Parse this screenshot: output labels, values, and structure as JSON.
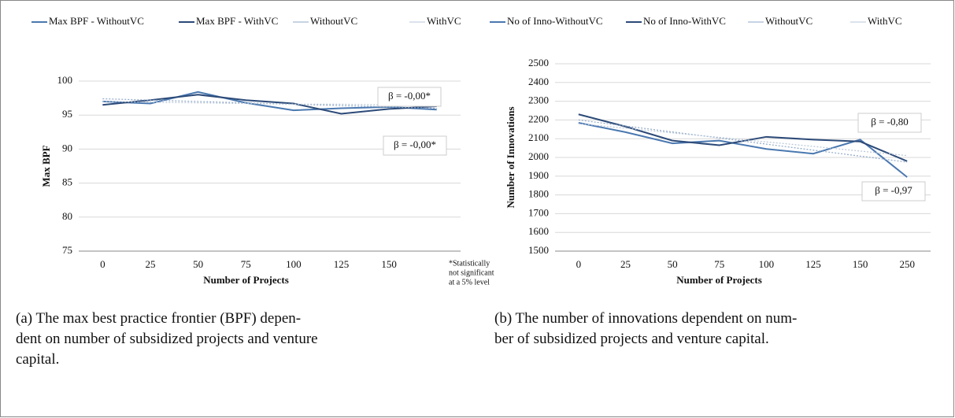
{
  "chart_data": [
    {
      "type": "line",
      "y_label": "Max BPF",
      "x_label": "Number of Projects",
      "categories": [
        "0",
        "25",
        "50",
        "75",
        "100",
        "125",
        "150",
        null
      ],
      "series": [
        {
          "name": "Max BPF - WithoutVC",
          "color": "#4a78b0",
          "style": "solid",
          "values": [
            97.0,
            96.7,
            98.4,
            96.8,
            95.7,
            96.0,
            96.2,
            95.8
          ]
        },
        {
          "name": "Max BPF - WithVC",
          "color": "#2c4a78",
          "style": "solid",
          "values": [
            96.5,
            97.2,
            98.0,
            97.2,
            96.7,
            95.2,
            95.9,
            96.3
          ]
        },
        {
          "name": "WithoutVC",
          "color": "#8fa8c8",
          "style": "dotted",
          "values": [
            97.4,
            97.2,
            97.0,
            96.8,
            96.6,
            96.4,
            96.2,
            96.0
          ]
        },
        {
          "name": "WithVC",
          "color": "#b8c6d8",
          "style": "dotted",
          "values": [
            97.0,
            96.9,
            96.8,
            96.7,
            96.6,
            96.6,
            96.5,
            96.4
          ]
        }
      ],
      "ylim": [
        75,
        100
      ],
      "yticks": [
        75,
        80,
        85,
        90,
        95,
        100
      ],
      "grid": true,
      "annotations": [
        "β = -0,00*",
        "β = -0,00*"
      ],
      "note": [
        "*Statistically",
        "not significant",
        "at a 5% level"
      ],
      "caption": [
        "(a) The max best practice frontier (BPF) depen-",
        "dent on number of subsidized projects and venture",
        "capital."
      ]
    },
    {
      "type": "line",
      "y_label": "Number of Innovations",
      "x_label": "Number of Projects",
      "categories": [
        "0",
        "25",
        "50",
        "75",
        "100",
        "125",
        "150",
        "250"
      ],
      "series": [
        {
          "name": "No of Inno-WithoutVC",
          "color": "#4a78b0",
          "style": "solid",
          "values": [
            2185,
            2135,
            2075,
            2090,
            2045,
            2020,
            2095,
            1895
          ]
        },
        {
          "name": "No of Inno-WithVC",
          "color": "#2c4a78",
          "style": "solid",
          "values": [
            2230,
            2165,
            2090,
            2065,
            2110,
            2095,
            2085,
            1980
          ]
        },
        {
          "name": "WithoutVC",
          "color": "#8fa8c8",
          "style": "dotted",
          "values": [
            2200,
            2168,
            2136,
            2104,
            2071,
            2039,
            2007,
            1975
          ]
        },
        {
          "name": "WithVC",
          "color": "#b8c6d8",
          "style": "dotted",
          "values": [
            2180,
            2156,
            2131,
            2107,
            2083,
            2059,
            2034,
            2010
          ]
        }
      ],
      "ylim": [
        1500,
        2500
      ],
      "yticks": [
        1500,
        1600,
        1700,
        1800,
        1900,
        2000,
        2100,
        2200,
        2300,
        2400,
        2500
      ],
      "grid": true,
      "annotations": [
        "β = -0,80",
        "β = -0,97"
      ],
      "caption": [
        "(b) The number of innovations dependent on num-",
        "ber of subsidized projects and venture capital."
      ]
    }
  ]
}
